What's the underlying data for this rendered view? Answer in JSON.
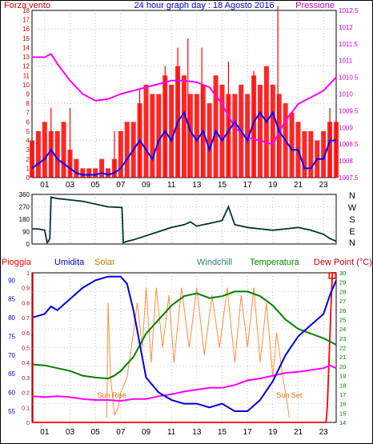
{
  "header": {
    "left_label": "Forza vento",
    "title": "24 hour graph day : 18 Agosto 2016",
    "right_label": "Pressione"
  },
  "colors": {
    "wind": "#ff0000",
    "gust": "#ff0000",
    "wind_avg": "#0000ff",
    "pressure": "#ff00ff",
    "direction": "#003333",
    "rain": "#ff0000",
    "humidity": "#0000dd",
    "solar": "#ff8c3a",
    "windchill": "#2a7a7a",
    "temperature": "#008000",
    "dewpoint": "#ff00ff",
    "axis_left_top": "#cc0000",
    "axis_right_top": "#cc00cc",
    "frame": "#000000",
    "grid": "#999999"
  },
  "chart_data": [
    {
      "type": "line",
      "name": "wind_pressure",
      "x": [
        "01",
        "03",
        "05",
        "07",
        "09",
        "11",
        "13",
        "15",
        "17",
        "19",
        "21",
        "23"
      ],
      "ylim_left": [
        0,
        18
      ],
      "left_ticks": [
        "0",
        "1",
        "2",
        "3",
        "4",
        "5",
        "6",
        "7",
        "8",
        "9",
        "10",
        "11",
        "12",
        "13",
        "14",
        "15",
        "16",
        "17",
        "18"
      ],
      "ylim_right": [
        1007.5,
        1012.5
      ],
      "right_ticks": [
        "1007.5",
        "1008",
        "1008.5",
        "1009",
        "1009.5",
        "1010",
        "1010.5",
        "1011",
        "1011.5",
        "1012",
        "1012.5"
      ],
      "series": [
        {
          "name": "Forza vento",
          "axis": "left",
          "x": [
            0,
            0.5,
            1,
            1.5,
            2,
            2.5,
            3,
            3.5,
            4,
            4.5,
            5,
            5.5,
            6,
            6.5,
            7,
            7.5,
            8,
            8.5,
            9,
            9.5,
            10,
            10.5,
            11,
            11.5,
            12,
            12.5,
            13,
            13.5,
            14,
            14.5,
            15,
            15.5,
            16,
            16.5,
            17,
            17.5,
            18,
            18.5,
            19,
            19.5,
            20,
            20.5,
            21,
            21.5,
            22,
            22.5,
            23,
            23.5,
            24
          ],
          "values": [
            4,
            5,
            6,
            5,
            5,
            6,
            3,
            2,
            1,
            1,
            1,
            2,
            1,
            2,
            5,
            6,
            6,
            8,
            10,
            9,
            9,
            11,
            10,
            12,
            11,
            9,
            9,
            10,
            8,
            11,
            10,
            9,
            9,
            10,
            9,
            11,
            10,
            12,
            10,
            9,
            8,
            7,
            6,
            5,
            5,
            4,
            5,
            6,
            6
          ]
        },
        {
          "name": "Raffica",
          "axis": "left",
          "x": [
            1.5,
            3,
            6.5,
            8.5,
            10.5,
            11.5,
            12.3,
            13.4,
            15.5,
            17.5,
            19.4,
            23.5
          ],
          "values": [
            7.5,
            7.5,
            5,
            9.5,
            12,
            14,
            15,
            14,
            12.5,
            11.5,
            18.5,
            7.5
          ]
        },
        {
          "name": "Media",
          "axis": "left",
          "x": [
            0,
            0.5,
            1,
            1.5,
            2,
            2.5,
            3,
            3.5,
            4,
            4.5,
            5,
            5.5,
            6,
            6.5,
            7,
            7.5,
            8,
            8.5,
            9,
            9.5,
            10,
            10.5,
            11,
            11.5,
            12,
            12.5,
            13,
            13.5,
            14,
            14.5,
            15,
            15.5,
            16,
            16.5,
            17,
            17.5,
            18,
            18.5,
            19,
            19.5,
            20,
            20.5,
            21,
            21.5,
            22,
            22.5,
            23,
            23.5,
            24
          ],
          "values": [
            1,
            1.5,
            2,
            3,
            2,
            1.5,
            1,
            0.5,
            0.3,
            0.3,
            0.3,
            0.5,
            0.3,
            0.5,
            1,
            2,
            3,
            4,
            3,
            2,
            4,
            5,
            4,
            6,
            7,
            5,
            4,
            5,
            3,
            5,
            4,
            5,
            6,
            5,
            4,
            6,
            7,
            6,
            7,
            5,
            4,
            3,
            3,
            1,
            1,
            2,
            2,
            4,
            4
          ]
        },
        {
          "name": "Pressione",
          "axis": "right",
          "x": [
            0,
            1,
            1.5,
            2,
            3,
            4,
            5,
            6,
            7,
            8,
            9,
            10,
            11,
            12,
            13,
            14,
            15,
            16,
            17,
            18,
            19,
            20,
            21,
            22,
            23,
            24
          ],
          "values": [
            1011.1,
            1011.1,
            1011.2,
            1010.9,
            1010.4,
            1010.0,
            1009.8,
            1009.85,
            1010.0,
            1010.1,
            1010.2,
            1010.3,
            1010.4,
            1010.4,
            1010.35,
            1010.2,
            1009.7,
            1009.0,
            1008.7,
            1008.6,
            1008.5,
            1009.2,
            1009.7,
            1009.9,
            1010.1,
            1010.5
          ]
        }
      ]
    },
    {
      "type": "line",
      "name": "direction",
      "x": [
        "01",
        "03",
        "05",
        "07",
        "09",
        "11",
        "13",
        "15",
        "17",
        "19",
        "21",
        "23"
      ],
      "ylim_left": [
        0,
        360
      ],
      "left_ticks": [
        "0",
        "90",
        "180",
        "270",
        "360"
      ],
      "right_ticks": [
        "N",
        "W",
        "S",
        "E",
        "N"
      ],
      "series": [
        {
          "name": "Direzione",
          "x": [
            0,
            0.5,
            1,
            1.2,
            1.3,
            1.4,
            1.5,
            2,
            3,
            4,
            5,
            6,
            7.1,
            7.2,
            7.5,
            8,
            9,
            10,
            11,
            12,
            12.5,
            13,
            14,
            15,
            15.5,
            16,
            17,
            18,
            19,
            20,
            21,
            22,
            23,
            23.5,
            24
          ],
          "values": [
            110,
            110,
            100,
            10,
            20,
            40,
            340,
            330,
            320,
            310,
            290,
            270,
            265,
            10,
            20,
            30,
            60,
            90,
            120,
            140,
            160,
            130,
            150,
            170,
            270,
            140,
            120,
            110,
            100,
            110,
            120,
            100,
            70,
            40,
            20
          ]
        }
      ]
    },
    {
      "type": "line",
      "name": "humidity_temperature",
      "x": [
        "01",
        "03",
        "05",
        "07",
        "09",
        "11",
        "13",
        "15",
        "17",
        "19",
        "21",
        "23"
      ],
      "ylim_left": [
        52,
        92
      ],
      "left_ticks": [
        "55",
        "60",
        "65",
        "70",
        "75",
        "80",
        "85",
        "90"
      ],
      "ylim_right": [
        14,
        30
      ],
      "right_ticks": [
        "14",
        "15",
        "16",
        "17",
        "18",
        "19",
        "20",
        "21",
        "22",
        "23",
        "24",
        "25",
        "26",
        "27",
        "28",
        "29",
        "30"
      ],
      "rain_ticks": [
        "0",
        "0.1",
        "0.2",
        "0.3",
        "0.4",
        "0.5",
        "0.6",
        "0.7",
        "0.8",
        "0.9",
        "1"
      ],
      "annotations": [
        "Sun Rise",
        "Sun Set"
      ],
      "legend": [
        "Pioggia",
        "Umidita",
        "Solar",
        "Windchill",
        "Temperatura",
        "Dew Point (°C)"
      ],
      "series": [
        {
          "name": "Pioggia",
          "axis": "rain",
          "x": [
            0,
            23.2,
            23.3,
            23.6,
            23.7,
            24
          ],
          "values": [
            0,
            0,
            0.1,
            0.8,
            1,
            1
          ]
        },
        {
          "name": "Umidita",
          "axis": "left",
          "x": [
            0,
            1,
            1.5,
            2,
            3,
            4,
            5,
            6,
            6.5,
            7,
            7.5,
            8,
            9,
            10,
            11,
            12,
            13,
            14,
            15,
            16,
            17,
            18,
            19,
            20,
            21,
            22,
            23,
            23.5,
            24
          ],
          "values": [
            80,
            81,
            83,
            82,
            85,
            88,
            90,
            91,
            91,
            91,
            89,
            82,
            64,
            60,
            58,
            57,
            57,
            56,
            57,
            55,
            55,
            58,
            63,
            70,
            75,
            78,
            81,
            86,
            90
          ]
        },
        {
          "name": "Solar",
          "axis": "rain",
          "x": [
            5.9,
            6.0,
            6.2,
            6.5,
            6.8,
            7,
            7.5,
            8,
            8.3,
            8.7,
            9,
            9.4,
            9.8,
            10.3,
            10.8,
            11.2,
            11.8,
            12.4,
            13,
            13.6,
            14.2,
            14.8,
            15.4,
            16,
            16.5,
            17,
            17.5,
            18,
            18.5,
            19,
            19.3,
            19.8,
            20.1,
            20.3
          ],
          "values": [
            0.03,
            0.8,
            0.3,
            0.05,
            0.1,
            0.2,
            0.3,
            0.6,
            0.8,
            0.5,
            0.9,
            0.4,
            0.9,
            0.5,
            0.85,
            0.4,
            0.9,
            0.5,
            0.9,
            0.45,
            0.85,
            0.5,
            0.9,
            0.4,
            0.85,
            0.5,
            0.9,
            0.4,
            0.8,
            0.3,
            0.6,
            0.3,
            0.15,
            0.03
          ]
        },
        {
          "name": "Temperatura",
          "axis": "right",
          "x": [
            0,
            1,
            2,
            3,
            4,
            5,
            6,
            6.5,
            7,
            8,
            9,
            10,
            11,
            12,
            13,
            14,
            15,
            16,
            17,
            18,
            19,
            20,
            21,
            22,
            23,
            24
          ],
          "values": [
            20.2,
            20.1,
            19.8,
            19.5,
            19.0,
            18.8,
            18.7,
            19.0,
            19.5,
            21.0,
            23.5,
            25.0,
            26.5,
            27.5,
            27.8,
            27.3,
            27.5,
            28.0,
            28.0,
            27.5,
            26.5,
            25.0,
            24.0,
            23.5,
            23.0,
            22.3
          ]
        },
        {
          "name": "Dew Point (°C)",
          "axis": "right",
          "x": [
            0,
            1,
            2,
            3,
            4,
            5,
            6,
            7,
            8,
            9,
            10,
            11,
            12,
            13,
            14,
            15,
            16,
            17,
            18,
            19,
            20,
            21,
            22,
            23,
            23.5,
            24
          ],
          "values": [
            16.8,
            16.7,
            16.8,
            16.7,
            16.5,
            16.4,
            16.4,
            16.3,
            16.5,
            16.5,
            16.8,
            17.0,
            17.3,
            17.5,
            17.7,
            17.7,
            18.0,
            18.5,
            18.7,
            19.0,
            19.3,
            19.4,
            19.6,
            19.8,
            20.1,
            19.8
          ]
        }
      ]
    }
  ],
  "panel3": {
    "label_rain": "Pioggia",
    "label_humidity": "Umidita",
    "label_solar": "Solar",
    "label_windchill": "Windchill",
    "label_temperature": "Temperatura",
    "label_dewpoint": "Dew Point (°C)",
    "sunrise": "Sun Rise",
    "sunset": "Sun Set"
  }
}
